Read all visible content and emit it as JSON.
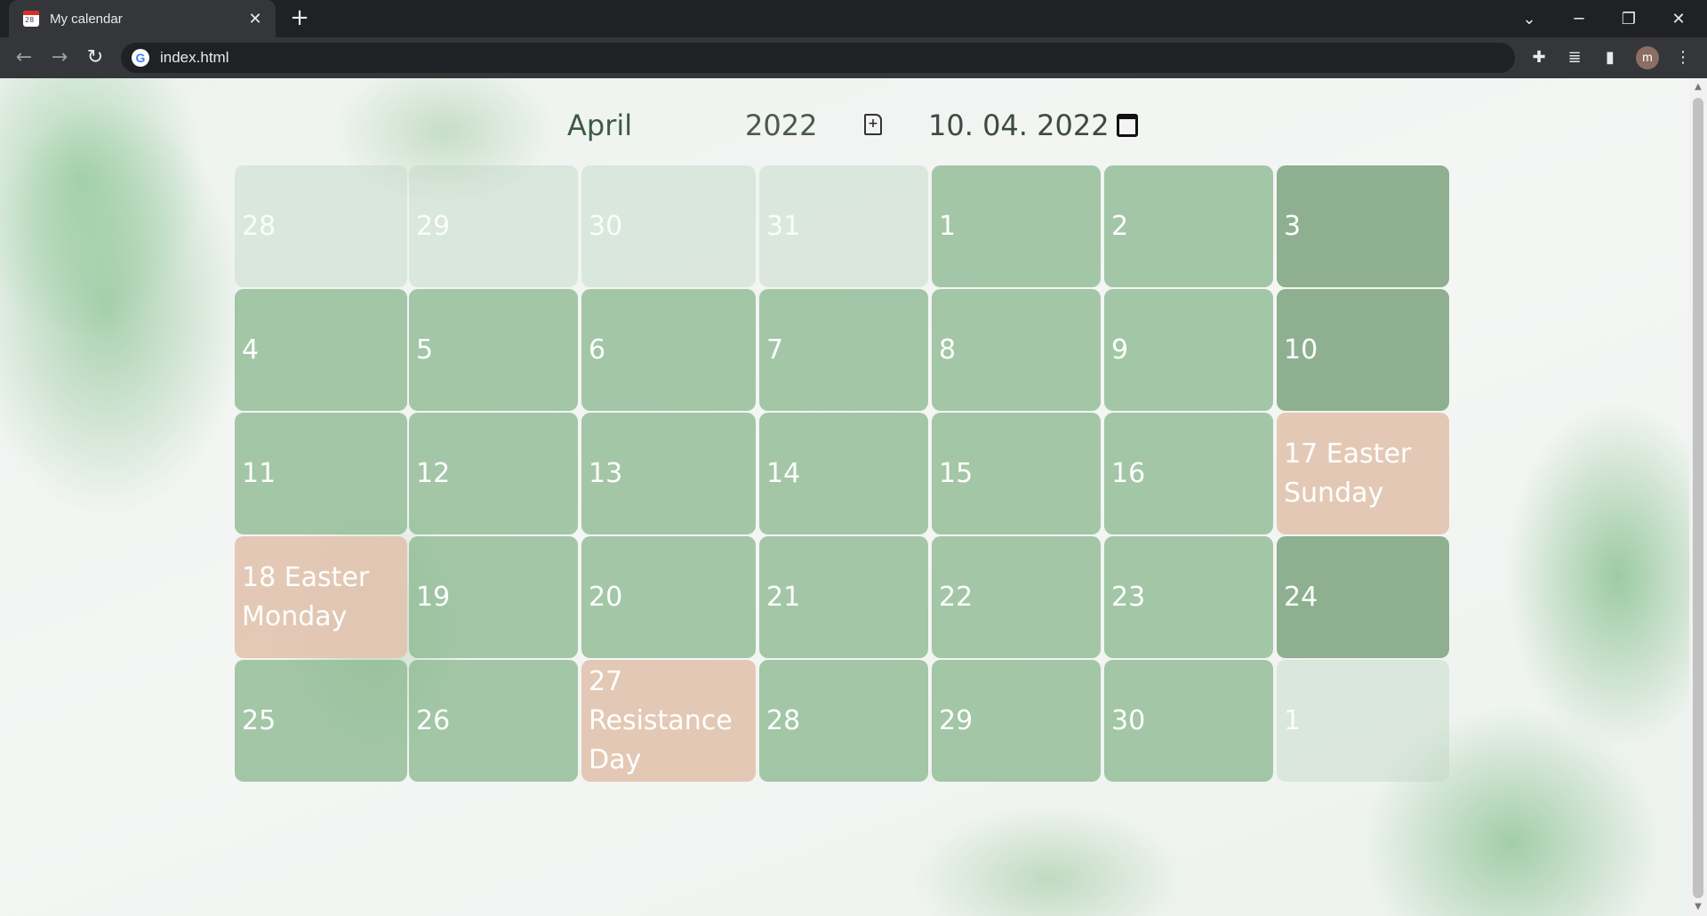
{
  "browser": {
    "tab_title": "My calendar",
    "url": "index.html",
    "avatar_letter": "m"
  },
  "calendar": {
    "month": "April",
    "year": "2022",
    "selected_date": "10. 04. 2022",
    "weeks": [
      [
        {
          "label": "28",
          "type": "other"
        },
        {
          "label": "29",
          "type": "other"
        },
        {
          "label": "30",
          "type": "other"
        },
        {
          "label": "31",
          "type": "other"
        },
        {
          "label": "1",
          "type": "cur"
        },
        {
          "label": "2",
          "type": "cur"
        },
        {
          "label": "3",
          "type": "weekend"
        }
      ],
      [
        {
          "label": "4",
          "type": "cur"
        },
        {
          "label": "5",
          "type": "cur"
        },
        {
          "label": "6",
          "type": "cur"
        },
        {
          "label": "7",
          "type": "cur"
        },
        {
          "label": "8",
          "type": "cur"
        },
        {
          "label": "9",
          "type": "cur"
        },
        {
          "label": "10",
          "type": "weekend"
        }
      ],
      [
        {
          "label": "11",
          "type": "cur"
        },
        {
          "label": "12",
          "type": "cur"
        },
        {
          "label": "13",
          "type": "cur"
        },
        {
          "label": "14",
          "type": "cur"
        },
        {
          "label": "15",
          "type": "cur"
        },
        {
          "label": "16",
          "type": "cur"
        },
        {
          "label": "17 Easter Sunday",
          "type": "holiday"
        }
      ],
      [
        {
          "label": "18 Easter Monday",
          "type": "holiday"
        },
        {
          "label": "19",
          "type": "cur"
        },
        {
          "label": "20",
          "type": "cur"
        },
        {
          "label": "21",
          "type": "cur"
        },
        {
          "label": "22",
          "type": "cur"
        },
        {
          "label": "23",
          "type": "cur"
        },
        {
          "label": "24",
          "type": "weekend"
        }
      ],
      [
        {
          "label": "25",
          "type": "cur"
        },
        {
          "label": "26",
          "type": "cur"
        },
        {
          "label": "27 Resistance Day",
          "type": "holiday"
        },
        {
          "label": "28",
          "type": "cur"
        },
        {
          "label": "29",
          "type": "cur"
        },
        {
          "label": "30",
          "type": "cur"
        },
        {
          "label": "1",
          "type": "other"
        }
      ]
    ]
  }
}
